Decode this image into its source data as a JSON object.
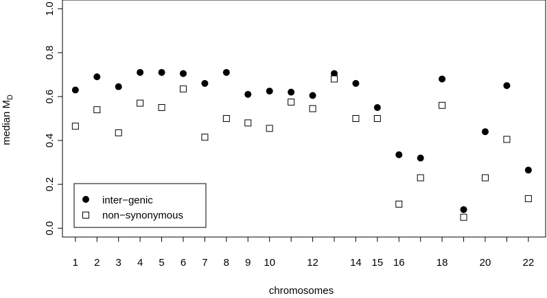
{
  "chart_data": {
    "type": "scatter",
    "xlabel": "chromosomes",
    "ylabel": "median M",
    "ylabel_subscript": "D",
    "xlim": [
      0.4,
      22.8
    ],
    "ylim": [
      -0.04,
      1.04
    ],
    "x_ticks": [
      1,
      2,
      3,
      4,
      5,
      6,
      7,
      8,
      9,
      10,
      11,
      12,
      13,
      14,
      15,
      16,
      17,
      18,
      19,
      20,
      21,
      22
    ],
    "x_tick_labels": [
      "1",
      "2",
      "3",
      "4",
      "5",
      "6",
      "7",
      "8",
      "9",
      "10",
      "",
      "12",
      "",
      "14",
      "15",
      "16",
      "",
      "18",
      "",
      "20",
      "",
      "22"
    ],
    "y_ticks": [
      0.0,
      0.2,
      0.4,
      0.6,
      0.8,
      1.0
    ],
    "y_tick_labels": [
      "0.0",
      "0.2",
      "0.4",
      "0.6",
      "0.8",
      "1.0"
    ],
    "legend_position": "bottom-left",
    "series": [
      {
        "name": "inter−genic",
        "marker": "filled-circle",
        "x": [
          1,
          2,
          3,
          4,
          5,
          6,
          7,
          8,
          9,
          10,
          11,
          12,
          13,
          14,
          15,
          16,
          17,
          18,
          19,
          20,
          21,
          22
        ],
        "values": [
          0.63,
          0.69,
          0.645,
          0.71,
          0.71,
          0.705,
          0.66,
          0.71,
          0.61,
          0.625,
          0.62,
          0.605,
          0.705,
          0.66,
          0.55,
          0.335,
          0.32,
          0.68,
          0.085,
          0.44,
          0.65,
          0.265
        ]
      },
      {
        "name": "non−synonymous",
        "marker": "open-square",
        "x": [
          1,
          2,
          3,
          4,
          5,
          6,
          7,
          8,
          9,
          10,
          11,
          12,
          13,
          14,
          15,
          16,
          17,
          18,
          19,
          20,
          21,
          22
        ],
        "values": [
          0.465,
          0.54,
          0.435,
          0.57,
          0.55,
          0.635,
          0.415,
          0.5,
          0.48,
          0.455,
          0.575,
          0.545,
          0.68,
          0.5,
          0.5,
          0.11,
          0.23,
          0.56,
          0.05,
          0.23,
          0.405,
          0.135
        ]
      }
    ]
  }
}
